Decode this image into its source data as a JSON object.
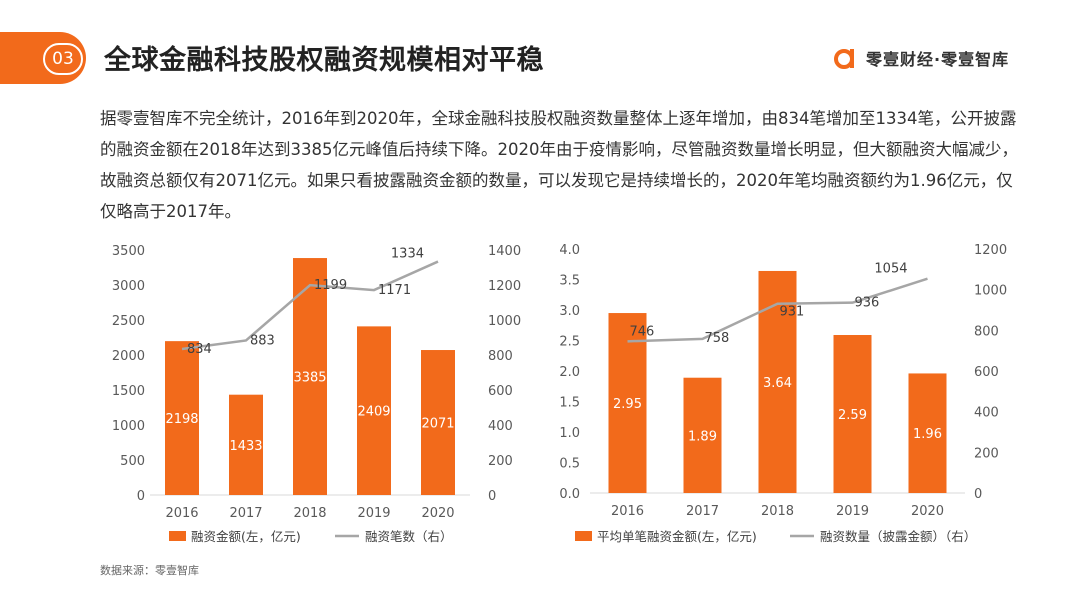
{
  "header": {
    "badge": "03",
    "title": "全球金融科技股权融资规模相对平稳",
    "brand": "零壹财经·零壹智库"
  },
  "description": "据零壹智库不完全统计，2016年到2020年，全球金融科技股权融资数量整体上逐年增加，由834笔增加至1334笔，公开披露的融资金额在2018年达到3385亿元峰值后持续下降。2020年由于疫情影响，尽管融资数量增长明显，但大额融资大幅减少，故融资总额仅有2071亿元。如果只看披露融资金额的数量，可以发现它是持续增长的，2020年笔均融资额约为1.96亿元，仅仅略高于2017年。",
  "source": "数据来源：零壹智库",
  "colors": {
    "bar": "#f26a1b",
    "line": "#a6a6a6",
    "accent": "#f26a1b"
  },
  "chart_data": [
    {
      "type": "bar+line",
      "categories": [
        "2016",
        "2017",
        "2018",
        "2019",
        "2020"
      ],
      "series": [
        {
          "name": "融资金额(左，亿元)",
          "type": "bar",
          "axis": "left",
          "values": [
            2198,
            1433,
            3385,
            2409,
            2071
          ],
          "labels": [
            "2198",
            "1433",
            "3385",
            "2409",
            "2071"
          ]
        },
        {
          "name": "融资笔数（右）",
          "type": "line",
          "axis": "right",
          "values": [
            834,
            883,
            1199,
            1171,
            1334
          ],
          "labels": [
            "834",
            "883",
            "1199",
            "1171",
            "1334"
          ]
        }
      ],
      "y_left": {
        "min": 0,
        "max": 3500,
        "ticks": [
          "0",
          "500",
          "1000",
          "1500",
          "2000",
          "2500",
          "3000",
          "3500"
        ]
      },
      "y_right": {
        "min": 0,
        "max": 1400,
        "ticks": [
          "0",
          "200",
          "400",
          "600",
          "800",
          "1000",
          "1200",
          "1400"
        ]
      },
      "legend_position": "bottom"
    },
    {
      "type": "bar+line",
      "categories": [
        "2016",
        "2017",
        "2018",
        "2019",
        "2020"
      ],
      "series": [
        {
          "name": "平均单笔融资金额(左，亿元)",
          "type": "bar",
          "axis": "left",
          "values": [
            2.95,
            1.89,
            3.64,
            2.59,
            1.96
          ],
          "labels": [
            "2.95",
            "1.89",
            "3.64",
            "2.59",
            "1.96"
          ]
        },
        {
          "name": "融资数量（披露金额）（右）",
          "type": "line",
          "axis": "right",
          "values": [
            746,
            758,
            931,
            936,
            1054
          ],
          "labels": [
            "746",
            "758",
            "931",
            "936",
            "1054"
          ]
        }
      ],
      "y_left": {
        "min": 0,
        "max": 4.0,
        "ticks": [
          "0.0",
          "0.5",
          "1.0",
          "1.5",
          "2.0",
          "2.5",
          "3.0",
          "3.5",
          "4.0"
        ]
      },
      "y_right": {
        "min": 0,
        "max": 1200,
        "ticks": [
          "0",
          "200",
          "400",
          "600",
          "800",
          "1000",
          "1200"
        ]
      },
      "legend_position": "bottom"
    }
  ]
}
